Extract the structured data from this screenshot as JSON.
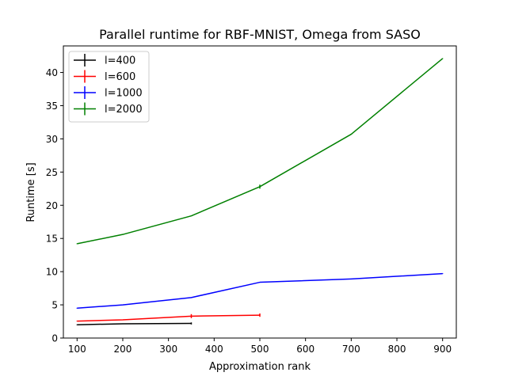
{
  "chart_data": {
    "type": "line",
    "title": "Parallel runtime for RBF-MNIST, Omega from SASO",
    "xlabel": "Approximation rank",
    "ylabel": "Runtime [s]",
    "xlim": [
      70,
      930
    ],
    "ylim": [
      0,
      44
    ],
    "xticks": [
      100,
      200,
      300,
      400,
      500,
      600,
      700,
      800,
      900
    ],
    "yticks": [
      0,
      5,
      10,
      15,
      20,
      25,
      30,
      35,
      40
    ],
    "grid": false,
    "legend_position": "top-left",
    "series": [
      {
        "name": "l=400",
        "color": "#000000",
        "x": [
          100,
          200,
          350
        ],
        "y": [
          2.0,
          2.15,
          2.2
        ],
        "err": [
          0.05,
          0.05,
          0.15
        ]
      },
      {
        "name": "l=600",
        "color": "#ff0000",
        "x": [
          100,
          200,
          350,
          500
        ],
        "y": [
          2.55,
          2.75,
          3.3,
          3.45
        ],
        "err": [
          0.05,
          0.05,
          0.3,
          0.25
        ]
      },
      {
        "name": "l=1000",
        "color": "#0000ff",
        "x": [
          100,
          200,
          350,
          500,
          700,
          900
        ],
        "y": [
          4.5,
          5.0,
          6.1,
          8.4,
          8.9,
          9.7
        ],
        "err": [
          0.05,
          0.05,
          0.05,
          0.05,
          0.05,
          0.05
        ]
      },
      {
        "name": "l=2000",
        "color": "#008000",
        "x": [
          100,
          200,
          350,
          500,
          700,
          900
        ],
        "y": [
          14.2,
          15.6,
          18.4,
          22.8,
          30.7,
          42.1
        ],
        "err": [
          0.05,
          0.05,
          0.05,
          0.3,
          0.05,
          0.05
        ]
      }
    ]
  }
}
